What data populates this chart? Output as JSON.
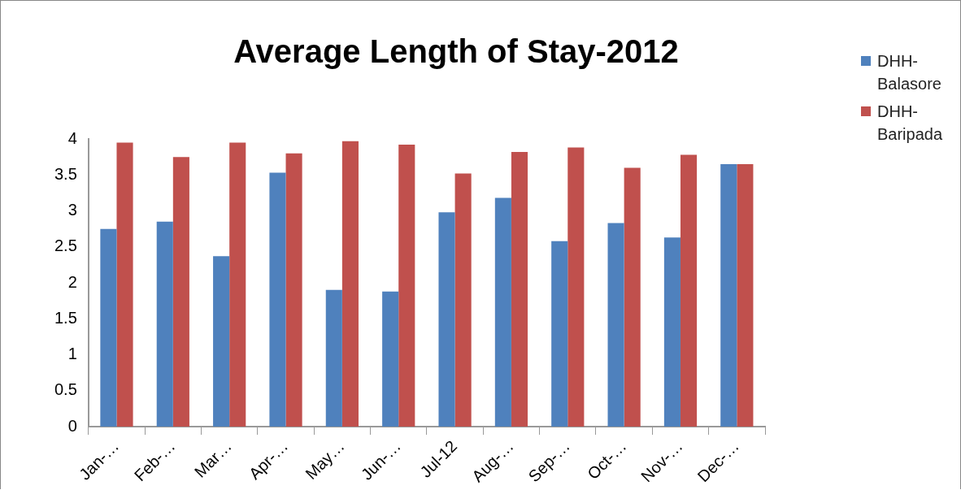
{
  "chart_data": {
    "type": "bar",
    "title": "Average Length of Stay-2012",
    "categories": [
      "Jan-…",
      "Feb-…",
      "Mar…",
      "Apr-…",
      "May…",
      "Jun-…",
      "Jul-12",
      "Aug-…",
      "Sep-…",
      "Oct-…",
      "Nov-…",
      "Dec-…"
    ],
    "series": [
      {
        "name": "DHH-Balasore",
        "color": "#4f81bd",
        "values": [
          2.75,
          2.85,
          2.37,
          3.53,
          1.9,
          1.88,
          2.98,
          3.18,
          2.58,
          2.83,
          2.63,
          3.65
        ]
      },
      {
        "name": "DHH-Baripada",
        "color": "#c0504d",
        "values": [
          3.95,
          3.75,
          3.95,
          3.8,
          3.97,
          3.92,
          3.52,
          3.82,
          3.88,
          3.6,
          3.78,
          3.65
        ]
      }
    ],
    "ylim": [
      0,
      4
    ],
    "yticks": [
      0,
      0.5,
      1,
      1.5,
      2,
      2.5,
      3,
      3.5,
      4
    ],
    "grid": false,
    "legend": "right"
  }
}
